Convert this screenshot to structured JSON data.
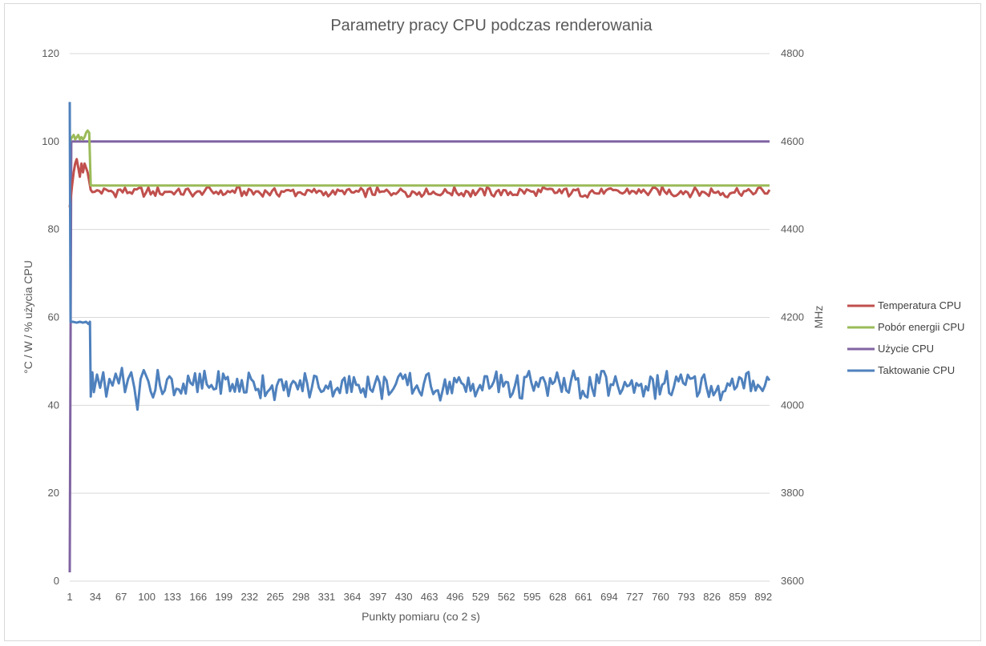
{
  "chart_data": {
    "type": "line",
    "title": "Parametry pracy CPU podczas renderowania",
    "xlabel": "Punkty pomiaru (co 2 s)",
    "ylabel": "°C / W / % użycia CPU",
    "ylabel_right": "MHz",
    "x_range": [
      1,
      900
    ],
    "x_ticks": [
      1,
      34,
      67,
      100,
      133,
      166,
      199,
      232,
      265,
      298,
      331,
      364,
      397,
      430,
      463,
      496,
      529,
      562,
      595,
      628,
      661,
      694,
      727,
      760,
      793,
      826,
      859,
      892
    ],
    "ylim": [
      0,
      120
    ],
    "y_ticks": [
      0,
      20,
      40,
      60,
      80,
      100,
      120
    ],
    "ylim_right": [
      3600,
      4800
    ],
    "y_ticks_right": [
      3600,
      3800,
      4000,
      4200,
      4400,
      4600,
      4800
    ],
    "grid": "horizontal",
    "legend_position": "right",
    "series": [
      {
        "name": "Temperatura CPU",
        "axis": "left",
        "color": "#c0504d",
        "points": [
          [
            1,
            85
          ],
          [
            4,
            90
          ],
          [
            6,
            93
          ],
          [
            8,
            95
          ],
          [
            10,
            96
          ],
          [
            12,
            94
          ],
          [
            14,
            92
          ],
          [
            16,
            95
          ],
          [
            18,
            93
          ],
          [
            20,
            95
          ],
          [
            22,
            94
          ],
          [
            24,
            93
          ],
          [
            26,
            91
          ],
          [
            28,
            89
          ],
          [
            30,
            88.5
          ]
        ],
        "steady": {
          "from": 30,
          "to": 900,
          "step": 3,
          "mean": 88.5,
          "amplitude": 1.3
        }
      },
      {
        "name": "Pobór energii CPU",
        "axis": "left",
        "color": "#9bbb59",
        "points": [
          [
            1,
            100
          ],
          [
            4,
            101
          ],
          [
            6,
            101.5
          ],
          [
            8,
            100.5
          ],
          [
            10,
            101
          ],
          [
            12,
            101.5
          ],
          [
            14,
            100.5
          ],
          [
            16,
            101
          ],
          [
            18,
            100.5
          ],
          [
            20,
            101
          ],
          [
            22,
            102
          ],
          [
            24,
            102.5
          ],
          [
            26,
            102
          ],
          [
            28,
            90
          ],
          [
            30,
            90
          ],
          [
            900,
            90
          ]
        ]
      },
      {
        "name": "Użycie CPU",
        "axis": "left",
        "color": "#8064a2",
        "points": [
          [
            1,
            2
          ],
          [
            3,
            100
          ],
          [
            900,
            100
          ]
        ]
      },
      {
        "name": "Taktowanie CPU",
        "axis": "right",
        "color": "#4f81bd",
        "points": [
          [
            1,
            4690
          ],
          [
            2,
            4190
          ],
          [
            5,
            4190
          ],
          [
            10,
            4188
          ],
          [
            14,
            4190
          ],
          [
            18,
            4188
          ],
          [
            22,
            4190
          ],
          [
            25,
            4185
          ],
          [
            27,
            4190
          ],
          [
            28,
            4020
          ],
          [
            30,
            4075
          ],
          [
            32,
            4030
          ],
          [
            36,
            4070
          ],
          [
            40,
            4040
          ],
          [
            44,
            4075
          ],
          [
            48,
            4020
          ],
          [
            52,
            4060
          ],
          [
            56,
            4045
          ],
          [
            60,
            4072
          ],
          [
            64,
            4050
          ],
          [
            68,
            4085
          ],
          [
            72,
            4030
          ],
          [
            76,
            4060
          ],
          [
            80,
            4075
          ],
          [
            84,
            4040
          ],
          [
            88,
            3990
          ],
          [
            92,
            4060
          ],
          [
            96,
            4080
          ]
        ],
        "steady": {
          "from": 96,
          "to": 900,
          "step": 3,
          "mean": 4045,
          "amplitude": 38
        }
      }
    ],
    "legend": [
      {
        "label": "Temperatura CPU",
        "color": "#c0504d"
      },
      {
        "label": "Pobór energii CPU",
        "color": "#9bbb59"
      },
      {
        "label": "Użycie CPU",
        "color": "#8064a2"
      },
      {
        "label": "Taktowanie CPU",
        "color": "#4f81bd"
      }
    ]
  }
}
